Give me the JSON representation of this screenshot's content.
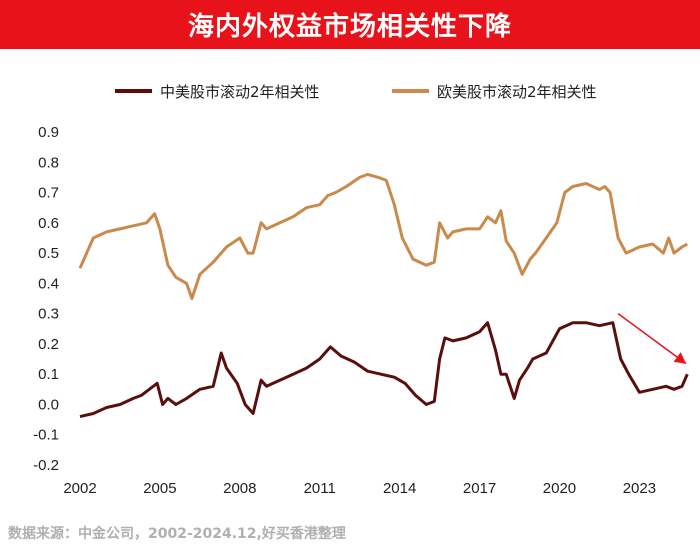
{
  "title": "海内外权益市场相关性下降",
  "source": "数据来源：中金公司，2002-2024.12,好买香港整理",
  "colors": {
    "title_bg": "#e8131a",
    "china_us": "#5a0f0f",
    "europe_us": "#c98a4b",
    "arrow": "#e8131a"
  },
  "chart_data": {
    "type": "line",
    "title": "",
    "xlabel": "",
    "ylabel": "",
    "xlim": [
      2002,
      2024.9
    ],
    "ylim": [
      -0.2,
      0.9
    ],
    "x_ticks": [
      2002,
      2005,
      2008,
      2011,
      2014,
      2017,
      2020,
      2023
    ],
    "y_ticks": [
      -0.2,
      -0.1,
      0.0,
      0.1,
      0.2,
      0.3,
      0.4,
      0.5,
      0.6,
      0.7,
      0.8,
      0.9
    ],
    "y_tick_labels": [
      "-0.2",
      "-0.1",
      "0.0",
      "0.1",
      "0.2",
      "0.3",
      "0.4",
      "0.5",
      "0.6",
      "0.7",
      "0.8",
      "0.9"
    ],
    "legend_position": "top",
    "grid": false,
    "series": [
      {
        "name": "中美股市滚动2年相关性",
        "x": [
          2002.0,
          2002.5,
          2003.0,
          2003.5,
          2004.0,
          2004.3,
          2004.6,
          2004.9,
          2005.1,
          2005.3,
          2005.6,
          2006.0,
          2006.5,
          2007.0,
          2007.3,
          2007.5,
          2007.9,
          2008.2,
          2008.5,
          2008.8,
          2009.0,
          2009.5,
          2010.0,
          2010.5,
          2011.0,
          2011.4,
          2011.8,
          2012.3,
          2012.8,
          2013.3,
          2013.8,
          2014.2,
          2014.6,
          2015.0,
          2015.3,
          2015.5,
          2015.7,
          2016.0,
          2016.5,
          2017.0,
          2017.3,
          2017.6,
          2017.8,
          2018.0,
          2018.3,
          2018.5,
          2018.8,
          2019.0,
          2019.5,
          2020.0,
          2020.5,
          2021.0,
          2021.5,
          2022.0,
          2022.3,
          2022.6,
          2023.0,
          2023.5,
          2024.0,
          2024.3,
          2024.6,
          2024.8
        ],
        "values": [
          -0.04,
          -0.03,
          -0.01,
          0.0,
          0.02,
          0.03,
          0.05,
          0.07,
          0.0,
          0.02,
          0.0,
          0.02,
          0.05,
          0.06,
          0.17,
          0.12,
          0.07,
          0.0,
          -0.03,
          0.08,
          0.06,
          0.08,
          0.1,
          0.12,
          0.15,
          0.19,
          0.16,
          0.14,
          0.11,
          0.1,
          0.09,
          0.07,
          0.03,
          0.0,
          0.01,
          0.15,
          0.22,
          0.21,
          0.22,
          0.24,
          0.27,
          0.18,
          0.1,
          0.1,
          0.02,
          0.08,
          0.12,
          0.15,
          0.17,
          0.25,
          0.27,
          0.27,
          0.26,
          0.27,
          0.15,
          0.1,
          0.04,
          0.05,
          0.06,
          0.05,
          0.06,
          0.1
        ]
      },
      {
        "name": "欧美股市滚动2年相关性",
        "x": [
          2002.0,
          2002.5,
          2003.0,
          2003.5,
          2004.0,
          2004.5,
          2004.8,
          2005.0,
          2005.3,
          2005.6,
          2006.0,
          2006.2,
          2006.5,
          2007.0,
          2007.5,
          2008.0,
          2008.3,
          2008.5,
          2008.8,
          2009.0,
          2009.5,
          2010.0,
          2010.5,
          2011.0,
          2011.3,
          2011.6,
          2012.0,
          2012.5,
          2012.8,
          2013.2,
          2013.5,
          2013.8,
          2014.1,
          2014.5,
          2015.0,
          2015.3,
          2015.5,
          2015.8,
          2016.0,
          2016.5,
          2017.0,
          2017.3,
          2017.6,
          2017.8,
          2018.0,
          2018.3,
          2018.6,
          2018.9,
          2019.1,
          2019.5,
          2019.9,
          2020.2,
          2020.5,
          2021.0,
          2021.5,
          2021.7,
          2021.9,
          2022.2,
          2022.5,
          2023.0,
          2023.5,
          2023.9,
          2024.1,
          2024.3,
          2024.6,
          2024.8
        ],
        "values": [
          0.45,
          0.55,
          0.57,
          0.58,
          0.59,
          0.6,
          0.63,
          0.58,
          0.46,
          0.42,
          0.4,
          0.35,
          0.43,
          0.47,
          0.52,
          0.55,
          0.5,
          0.5,
          0.6,
          0.58,
          0.6,
          0.62,
          0.65,
          0.66,
          0.69,
          0.7,
          0.72,
          0.75,
          0.76,
          0.75,
          0.74,
          0.66,
          0.55,
          0.48,
          0.46,
          0.47,
          0.6,
          0.55,
          0.57,
          0.58,
          0.58,
          0.62,
          0.6,
          0.64,
          0.54,
          0.5,
          0.43,
          0.48,
          0.5,
          0.55,
          0.6,
          0.7,
          0.72,
          0.73,
          0.71,
          0.72,
          0.7,
          0.55,
          0.5,
          0.52,
          0.53,
          0.5,
          0.55,
          0.5,
          0.52,
          0.53
        ]
      }
    ],
    "annotation": "downward-trend-arrow"
  }
}
